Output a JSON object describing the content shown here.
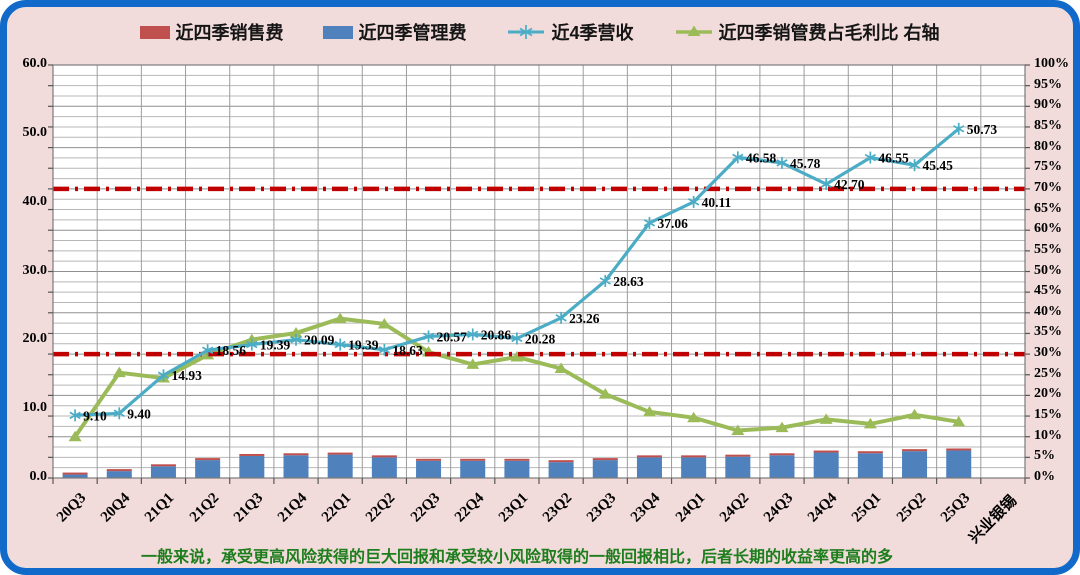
{
  "frame": {
    "background": "#f2dcdb",
    "border_color": "#1169c9"
  },
  "legend": [
    {
      "label": "近四季销售费",
      "marker": "bar-swatch",
      "color": "#c0504d"
    },
    {
      "label": "近四季管理费",
      "marker": "bar-swatch",
      "color": "#4f81bd"
    },
    {
      "label": "近4季营收",
      "marker": "line-asterisk",
      "color": "#4bacc6"
    },
    {
      "label": "近四季销管费占毛利比 右轴",
      "marker": "line-triangle",
      "color": "#9bbb59"
    }
  ],
  "chart_data": {
    "type": "combo",
    "categories": [
      "20Q3",
      "20Q4",
      "21Q1",
      "21Q2",
      "21Q3",
      "21Q4",
      "22Q1",
      "22Q2",
      "22Q3",
      "22Q4",
      "23Q1",
      "23Q2",
      "23Q3",
      "23Q4",
      "24Q1",
      "24Q2",
      "24Q3",
      "24Q4",
      "25Q1",
      "25Q2",
      "25Q3"
    ],
    "extra_category_label": "兴业银锡",
    "left_axis": {
      "min": 0,
      "max": 60,
      "tick_labels": [
        "0.0",
        "10.0",
        "20.0",
        "30.0",
        "40.0",
        "50.0",
        "60.0"
      ]
    },
    "right_axis": {
      "min": 0,
      "max": 100,
      "tick_labels": [
        "0%",
        "5%",
        "10%",
        "15%",
        "20%",
        "25%",
        "30%",
        "35%",
        "40%",
        "45%",
        "50%",
        "55%",
        "60%",
        "65%",
        "70%",
        "75%",
        "80%",
        "85%",
        "90%",
        "95%",
        "100%"
      ]
    },
    "series": [
      {
        "name": "近四季销售费",
        "type": "bar",
        "axis": "left",
        "color": "#c0504d",
        "values": [
          0.08,
          0.08,
          0.1,
          0.12,
          0.12,
          0.12,
          0.12,
          0.12,
          0.1,
          0.1,
          0.1,
          0.1,
          0.12,
          0.12,
          0.12,
          0.12,
          0.12,
          0.12,
          0.12,
          0.15,
          0.15
        ]
      },
      {
        "name": "近四季管理费",
        "type": "bar",
        "axis": "left",
        "color": "#4f81bd",
        "values": [
          0.5,
          1.0,
          1.7,
          2.6,
          3.2,
          3.3,
          3.4,
          3.0,
          2.5,
          2.5,
          2.5,
          2.3,
          2.6,
          3.0,
          3.0,
          3.1,
          3.3,
          3.7,
          3.6,
          3.9,
          4.0
        ]
      },
      {
        "name": "近4季营收",
        "type": "line",
        "axis": "left",
        "color": "#4bacc6",
        "marker": "asterisk",
        "values": [
          9.1,
          9.4,
          14.93,
          18.56,
          19.39,
          20.09,
          19.39,
          18.63,
          20.57,
          20.86,
          20.28,
          23.26,
          28.63,
          37.06,
          40.11,
          46.58,
          45.78,
          42.7,
          46.55,
          45.45,
          50.73
        ],
        "data_labels": [
          "9.10",
          "9.40",
          "14.93",
          "18.56",
          "19.39",
          "20.09",
          "19.39",
          "18.63",
          "20.57",
          "20.86",
          "20.28",
          "23.26",
          "28.63",
          "37.06",
          "40.11",
          "46.58",
          "45.78",
          "42.70",
          "46.55",
          "45.45",
          "50.73"
        ]
      },
      {
        "name": "近四季销管费占毛利比",
        "type": "line",
        "axis": "right",
        "color": "#9bbb59",
        "marker": "triangle",
        "values": [
          10.0,
          25.5,
          24.2,
          29.8,
          33.5,
          35.1,
          38.6,
          37.3,
          30.5,
          27.5,
          29.3,
          26.5,
          20.3,
          16.0,
          14.6,
          11.5,
          12.2,
          14.2,
          13.1,
          15.3,
          13.6
        ]
      }
    ],
    "reference_lines": [
      {
        "axis": "right",
        "value": 70,
        "color": "#c00000",
        "style": "dash-dot"
      },
      {
        "axis": "right",
        "value": 30,
        "color": "#c00000",
        "style": "dash-dot"
      }
    ],
    "grid": {
      "h_step_percent": 2.5,
      "v_per_category": true
    }
  },
  "footnote": "一般来说，承受更高风险获得的巨大回报和承受较小风险取得的一般回报相比，后者长期的收益率更高的多"
}
